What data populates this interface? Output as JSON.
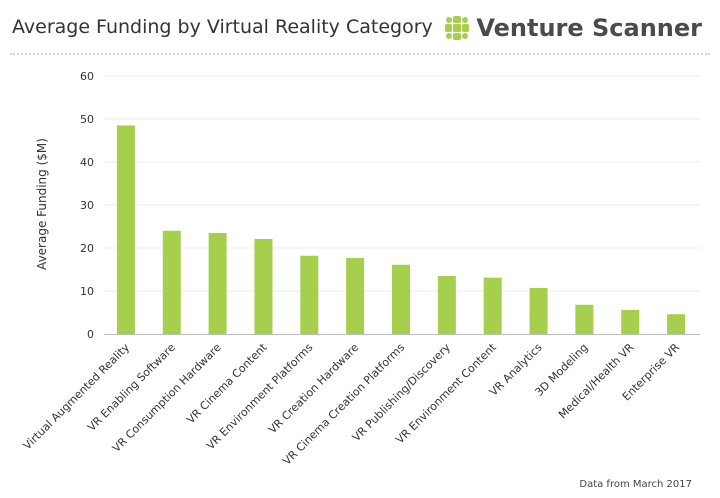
{
  "header": {
    "title": "Average Funding by Virtual Reality Category",
    "brand_name": "Venture Scanner"
  },
  "footer": {
    "note": "Data from March 2017"
  },
  "chart_data": {
    "type": "bar",
    "title": "Average Funding by Virtual Reality Category",
    "xlabel": "",
    "ylabel": "Average Funding ($M)",
    "ylim": [
      0,
      60
    ],
    "yticks": [
      0,
      10,
      20,
      30,
      40,
      50,
      60
    ],
    "grid": true,
    "bar_color": "#a5cf4c",
    "categories": [
      "Virtual Augmented Reality",
      "VR Enabling Software",
      "VR Consumption Hardware",
      "VR Cinema Content",
      "VR Environment Platforms",
      "VR Creation Hardware",
      "VR Cinema Creation Platforms",
      "VR Publishing/Discovery",
      "VR Environment Content",
      "VR Analytics",
      "3D Modeling",
      "Medical/Health VR",
      "Enterprise VR"
    ],
    "values": [
      48.5,
      24.0,
      23.5,
      22.1,
      18.2,
      17.7,
      16.1,
      13.5,
      13.1,
      10.7,
      6.8,
      5.6,
      4.6
    ]
  }
}
